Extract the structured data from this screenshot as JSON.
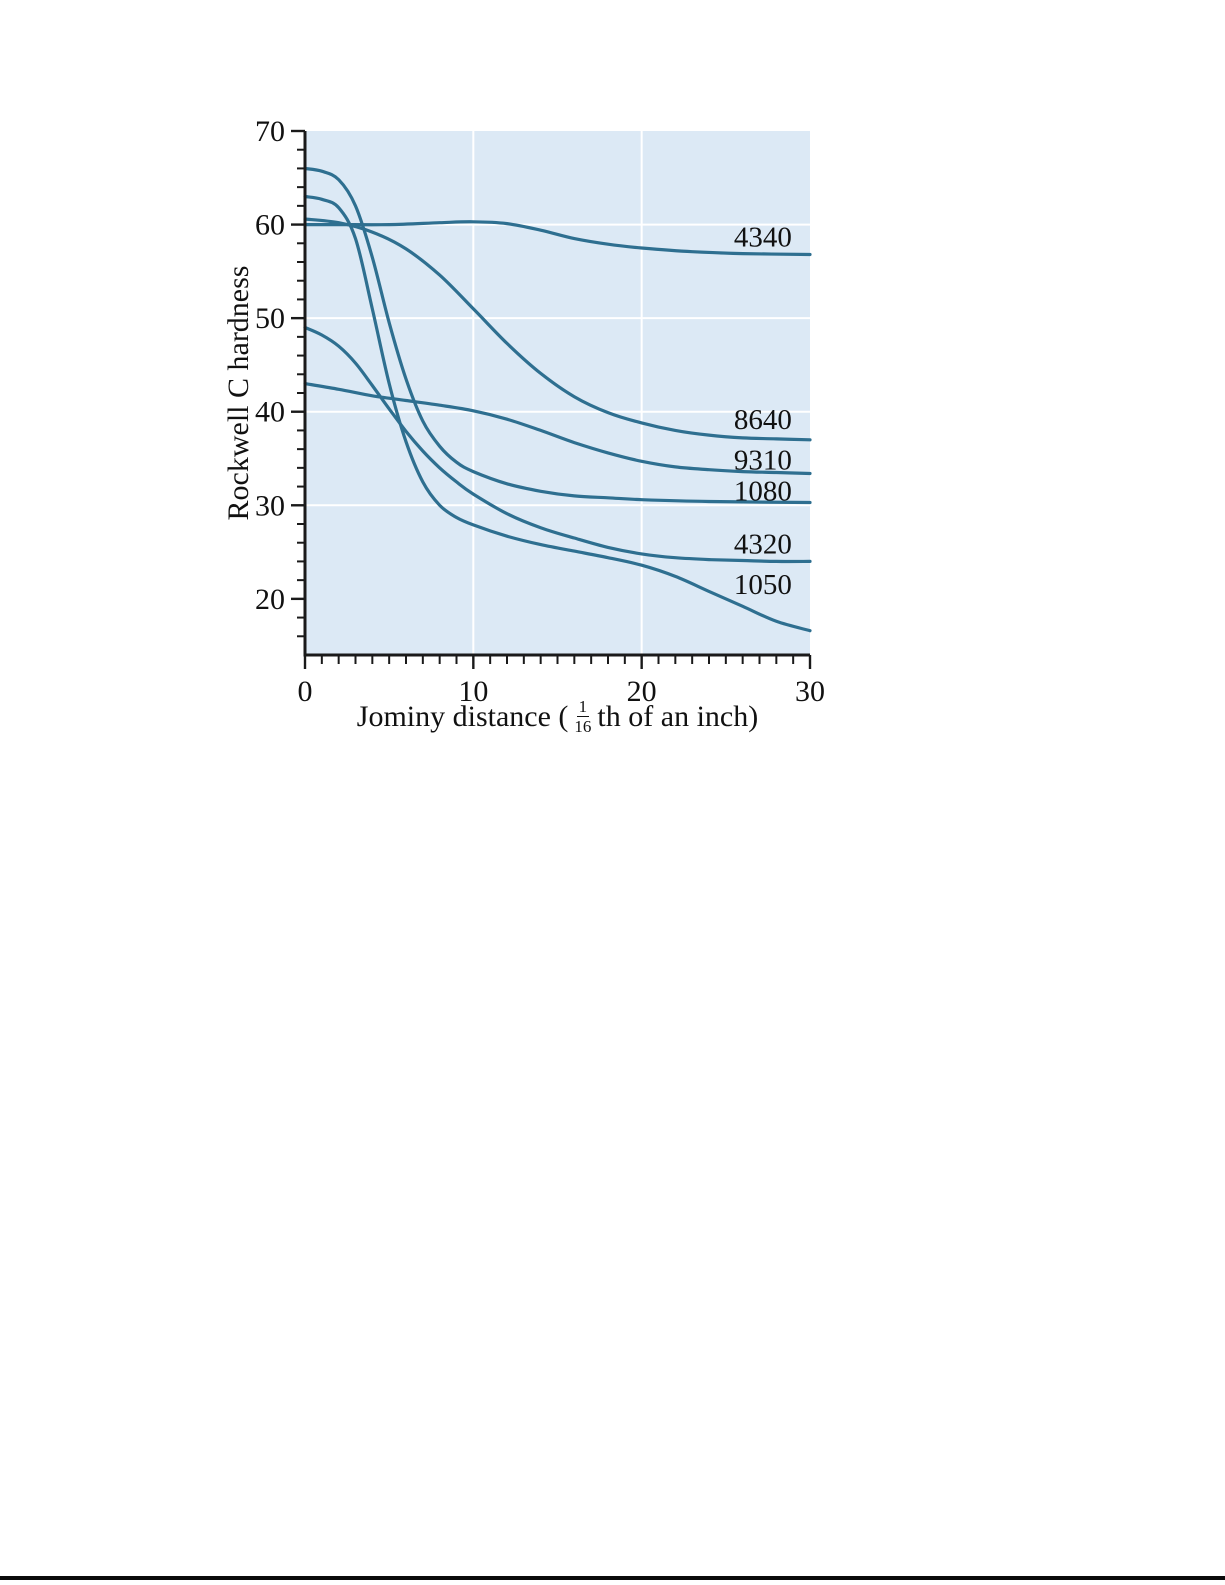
{
  "chart_data": {
    "type": "line",
    "title": "",
    "ylabel": "Rockwell C hardness",
    "xlabel_parts": {
      "prefix": "Jominy distance (",
      "frac_num": "1",
      "frac_den": "16",
      "suffix": "th of an inch)"
    },
    "xlim": [
      0,
      30
    ],
    "ylim": [
      14,
      70
    ],
    "x_major_ticks": [
      0,
      10,
      20,
      30
    ],
    "x_minor_step": 1,
    "y_major_ticks": [
      20,
      30,
      40,
      50,
      60,
      70
    ],
    "y_minor_step": 2,
    "grid_x": [
      10,
      20
    ],
    "grid_y": [
      30,
      40,
      50,
      60
    ],
    "legend_position": "inline-labels",
    "colors": {
      "plot_bg": "#dce9f5",
      "grid": "#ffffff",
      "curve": "#2e6f90",
      "axis": "#1a1a1a",
      "text": "#111111"
    },
    "series": [
      {
        "name": "4340",
        "label": "4340",
        "label_pos": [
          27.2,
          58.7
        ],
        "points": [
          [
            0,
            60
          ],
          [
            2,
            60
          ],
          [
            5,
            60
          ],
          [
            8,
            60.2
          ],
          [
            10,
            60.3
          ],
          [
            12,
            60.1
          ],
          [
            14,
            59.4
          ],
          [
            16,
            58.5
          ],
          [
            18,
            57.9
          ],
          [
            20,
            57.5
          ],
          [
            23,
            57.1
          ],
          [
            26,
            56.9
          ],
          [
            30,
            56.8
          ]
        ]
      },
      {
        "name": "8640",
        "label": "8640",
        "label_pos": [
          27.2,
          39.2
        ],
        "points": [
          [
            0,
            60.6
          ],
          [
            2,
            60.2
          ],
          [
            4,
            59.2
          ],
          [
            6,
            57.4
          ],
          [
            8,
            54.6
          ],
          [
            10,
            51
          ],
          [
            12,
            47.3
          ],
          [
            14,
            44.1
          ],
          [
            16,
            41.6
          ],
          [
            18,
            39.9
          ],
          [
            20,
            38.8
          ],
          [
            22,
            38
          ],
          [
            24,
            37.5
          ],
          [
            26,
            37.2
          ],
          [
            28,
            37.1
          ],
          [
            30,
            37
          ]
        ]
      },
      {
        "name": "9310",
        "label": "9310",
        "label_pos": [
          27.2,
          34.9
        ],
        "points": [
          [
            0,
            43
          ],
          [
            2,
            42.4
          ],
          [
            4,
            41.7
          ],
          [
            6,
            41.2
          ],
          [
            8,
            40.7
          ],
          [
            10,
            40.1
          ],
          [
            12,
            39.2
          ],
          [
            14,
            38
          ],
          [
            16,
            36.7
          ],
          [
            18,
            35.6
          ],
          [
            20,
            34.7
          ],
          [
            22,
            34.1
          ],
          [
            24,
            33.8
          ],
          [
            26,
            33.6
          ],
          [
            28,
            33.5
          ],
          [
            30,
            33.4
          ]
        ]
      },
      {
        "name": "1080",
        "label": "1080",
        "label_pos": [
          27.2,
          31.6
        ],
        "points": [
          [
            0,
            66
          ],
          [
            1,
            65.7
          ],
          [
            2,
            64.8
          ],
          [
            3,
            62
          ],
          [
            4,
            56.5
          ],
          [
            5,
            49.5
          ],
          [
            6,
            43.5
          ],
          [
            7,
            39
          ],
          [
            8,
            36.3
          ],
          [
            9,
            34.6
          ],
          [
            10,
            33.6
          ],
          [
            12,
            32.3
          ],
          [
            14,
            31.5
          ],
          [
            16,
            31
          ],
          [
            18,
            30.8
          ],
          [
            20,
            30.6
          ],
          [
            24,
            30.4
          ],
          [
            30,
            30.3
          ]
        ]
      },
      {
        "name": "4320",
        "label": "4320",
        "label_pos": [
          27.2,
          25.9
        ],
        "points": [
          [
            0,
            49
          ],
          [
            1,
            48.2
          ],
          [
            2,
            47
          ],
          [
            3,
            45.2
          ],
          [
            4,
            42.8
          ],
          [
            5,
            40.3
          ],
          [
            6,
            37.9
          ],
          [
            7,
            35.8
          ],
          [
            8,
            34
          ],
          [
            9,
            32.5
          ],
          [
            10,
            31.2
          ],
          [
            12,
            29.1
          ],
          [
            14,
            27.6
          ],
          [
            16,
            26.5
          ],
          [
            18,
            25.5
          ],
          [
            20,
            24.8
          ],
          [
            22,
            24.4
          ],
          [
            24,
            24.2
          ],
          [
            26,
            24.1
          ],
          [
            28,
            24
          ],
          [
            30,
            24
          ]
        ]
      },
      {
        "name": "1050",
        "label": "1050",
        "label_pos": [
          27.2,
          21.6
        ],
        "points": [
          [
            0,
            63
          ],
          [
            1,
            62.7
          ],
          [
            2,
            61.8
          ],
          [
            3,
            58.5
          ],
          [
            4,
            51
          ],
          [
            5,
            43
          ],
          [
            6,
            36.8
          ],
          [
            7,
            32.5
          ],
          [
            8,
            30
          ],
          [
            9,
            28.7
          ],
          [
            10,
            27.9
          ],
          [
            12,
            26.7
          ],
          [
            14,
            25.8
          ],
          [
            16,
            25.1
          ],
          [
            18,
            24.4
          ],
          [
            20,
            23.6
          ],
          [
            22,
            22.4
          ],
          [
            24,
            20.8
          ],
          [
            26,
            19.2
          ],
          [
            28,
            17.6
          ],
          [
            30,
            16.6
          ]
        ]
      }
    ]
  }
}
